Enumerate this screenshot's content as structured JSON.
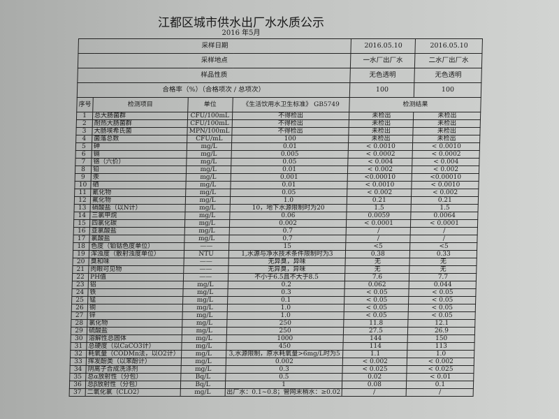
{
  "title": "江都区城市供水出厂水水质公示",
  "subtitle": "2016 年5月",
  "header_rows": [
    {
      "label": "采样日期",
      "v1": "2016.05.10",
      "v2": "2016.05.10"
    },
    {
      "label": "采样地点",
      "v1": "一水厂出厂水",
      "v2": "二水厂出厂水"
    },
    {
      "label": "样品性质",
      "v1": "无色透明",
      "v2": "无色透明"
    },
    {
      "label": "合格率（%）（合格项次 / 总项次）",
      "v1": "100",
      "v2": "100"
    }
  ],
  "columns": {
    "no": "序号",
    "item": "检测项目",
    "unit": "单位",
    "standard": "《生活饮用水卫生标准》 GB5749",
    "result": "检测结果"
  },
  "rows": [
    [
      "1",
      "总大肠菌群",
      "CFU/100mL",
      "不得检出",
      "未检出",
      "未检出"
    ],
    [
      "2",
      "耐热大肠菌群",
      "CFU/100mL",
      "不得检出",
      "未检出",
      "未检出"
    ],
    [
      "3",
      "大肠埃希氏菌",
      "MPN/100mL",
      "不得检出",
      "未检出",
      "未检出"
    ],
    [
      "4",
      "菌落总数",
      "CFU/mL",
      "100",
      "未检出",
      "未检出"
    ],
    [
      "5",
      "砷",
      "mg/L",
      "0.01",
      "< 0.0010",
      "< 0.0010"
    ],
    [
      "6",
      "镉",
      "mg/L",
      "0.005",
      "< 0.0002",
      "< 0.0002"
    ],
    [
      "7",
      "铬（六价）",
      "mg/L",
      "0.05",
      "< 0.004",
      "< 0.004"
    ],
    [
      "8",
      "铅",
      "mg/L",
      "0.01",
      "< 0.002",
      "< 0.002"
    ],
    [
      "9",
      "汞",
      "mg/L",
      "0.001",
      "<0.00010",
      "<0.00010"
    ],
    [
      "10",
      "硒",
      "mg/L",
      "0.01",
      "< 0.0010",
      "< 0.0010"
    ],
    [
      "11",
      "氰化物",
      "mg/L",
      "0.05",
      "< 0.002",
      "< 0.002"
    ],
    [
      "12",
      "氟化物",
      "mg/L",
      "1.0",
      "0.21",
      "0.21"
    ],
    [
      "13",
      "硝酸盐（以N计）",
      "mg/L",
      "10，地下水源限制时为20",
      "1.5",
      "1.5"
    ],
    [
      "14",
      "三氯甲烷",
      "mg/L",
      "0.06",
      "0.0059",
      "0.0064"
    ],
    [
      "15",
      "四氯化碳",
      "mg/L",
      "0.002",
      "< 0.0001",
      "< 0.0001"
    ],
    [
      "16",
      "亚氯酸盐",
      "mg/L",
      "0.7",
      "/",
      "/"
    ],
    [
      "17",
      "氯酸盐",
      "mg/L",
      "0.7",
      "/",
      "/"
    ],
    [
      "18",
      "色度（铂钴色度单位）",
      "——",
      "15",
      "<5",
      "<5"
    ],
    [
      "19",
      "浑浊度（散射浊度单位）",
      "NTU",
      "1,水源与净水技术条件限制时为3",
      "0.38",
      "0.33"
    ],
    [
      "20",
      "臭和味",
      "——",
      "无异臭，异味",
      "无",
      "无"
    ],
    [
      "21",
      "肉眼可见物",
      "——",
      "无异臭，异味",
      "无",
      "无"
    ],
    [
      "22",
      "PH值",
      "——",
      "不小于6.5且不大于8.5",
      "7.6",
      "7.7"
    ],
    [
      "23",
      "铝",
      "mg/L",
      "0.2",
      "0.062",
      "0.044"
    ],
    [
      "24",
      "铁",
      "mg/L",
      "0.3",
      "< 0.05",
      "< 0.05"
    ],
    [
      "25",
      "锰",
      "mg/L",
      "0.1",
      "< 0.05",
      "< 0.05"
    ],
    [
      "26",
      "铜",
      "mg/L",
      "1.0",
      "< 0.05",
      "< 0.05"
    ],
    [
      "27",
      "锌",
      "mg/L",
      "1.0",
      "< 0.05",
      "< 0.05"
    ],
    [
      "28",
      "氯化物",
      "mg/L",
      "250",
      "11.8",
      "12.1"
    ],
    [
      "29",
      "硫酸盐",
      "mg/L",
      "250",
      "27.5",
      "26.9"
    ],
    [
      "30",
      "溶解性总固体",
      "mg/L",
      "1000",
      "144",
      "150"
    ],
    [
      "31",
      "总硬度（以CaCO3计）",
      "mg/L",
      "450",
      "114",
      "113"
    ],
    [
      "32",
      "耗氧量（CODMn法，以O2计）",
      "mg/L",
      "3,水源限制，原水耗氧量>6mg/L时为5",
      "1.1",
      "1.0"
    ],
    [
      "33",
      "挥发酚类（以苯酚计）",
      "mg/L",
      "0.002",
      "< 0.002",
      "< 0.002"
    ],
    [
      "34",
      "阴离子合成洗涤剂",
      "mg/L",
      "0.3",
      "< 0.025",
      "< 0.025"
    ],
    [
      "35",
      "总α放射性（分包）",
      "Bq/L",
      "0.5",
      "0.02",
      "< 0.01"
    ],
    [
      "36",
      "总β放射性（分包）",
      "Bq/L",
      "1",
      "0.08",
      "0.1"
    ],
    [
      "37",
      "二氧化氯（CLO2）",
      "mg/L",
      "出厂水：0.1~0.8；管网末梢水：≥0.02",
      "/",
      "/"
    ]
  ]
}
